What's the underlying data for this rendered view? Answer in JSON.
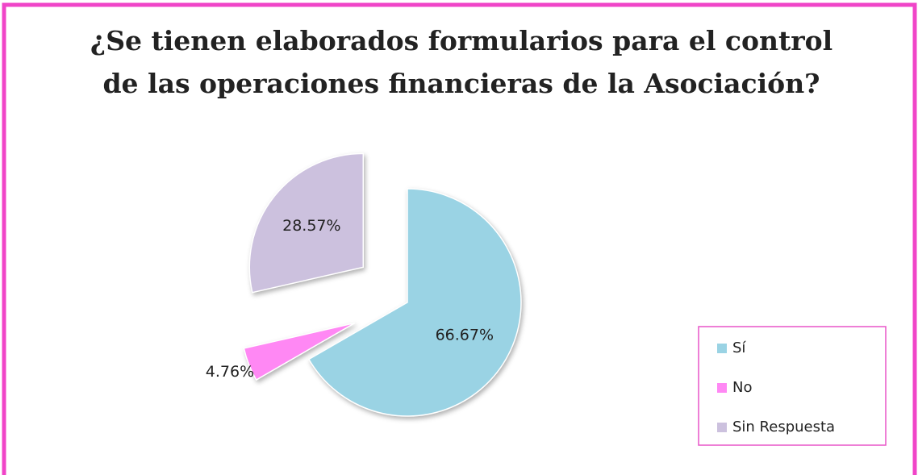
{
  "chart_data": {
    "type": "pie",
    "title": [
      "¿Se tienen elaborados formularios para el control",
      "de las operaciones financieras de la Asociación?"
    ],
    "categories": [
      "Sí",
      "No",
      "Sin Respuesta"
    ],
    "values": [
      66.67,
      4.76,
      28.57
    ],
    "value_labels": [
      "66.67%",
      "4.76%",
      "28.57%"
    ],
    "colors": [
      "#9ad3e4",
      "#ff88f4",
      "#ccc1de"
    ],
    "exploded": true,
    "legend": "right"
  }
}
